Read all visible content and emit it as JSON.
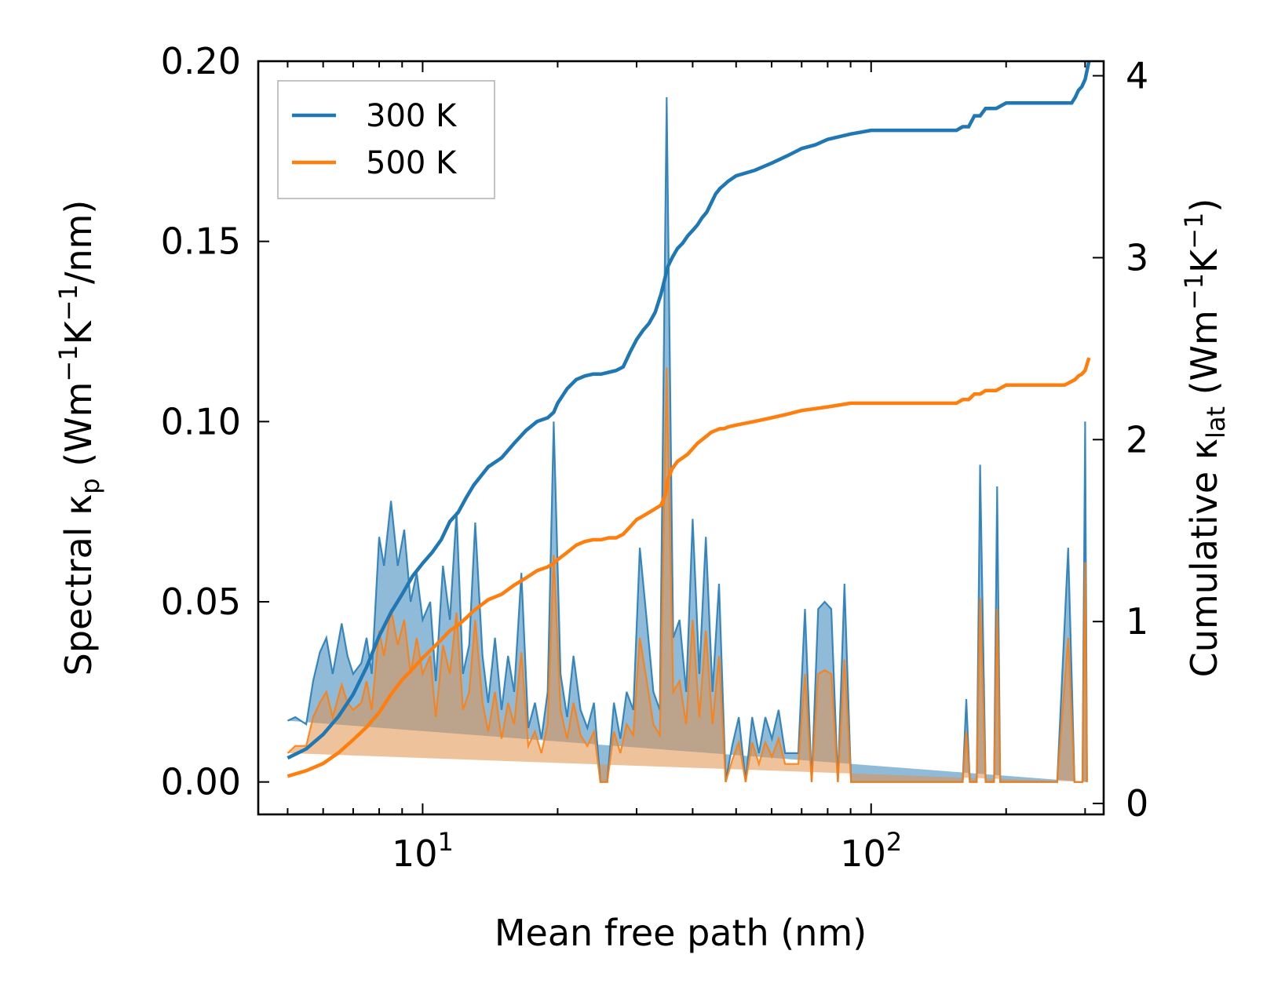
{
  "chart_data": {
    "type": "line",
    "xscale": "log",
    "xlabel": "Mean free path (nm)",
    "ylabel_left": "Spectral κp (Wm⁻¹K⁻¹/nm)",
    "ylabel_left_parts": {
      "pre": "Spectral κ",
      "sub": "p",
      "mid1": " (Wm",
      "sup1": "−1",
      "mid2": "K",
      "sup2": "−1",
      "post": "/nm)"
    },
    "ylabel_right": "Cumulative κlat (Wm⁻¹K⁻¹)",
    "ylabel_right_parts": {
      "pre": "Cumulative κ",
      "sub": "lat",
      "mid1": " (Wm",
      "sup1": "−1",
      "mid2": "K",
      "sup2": "−1",
      "post": ")"
    },
    "xlim": [
      4.3,
      330
    ],
    "ylim_left": [
      -0.009,
      0.2
    ],
    "ylim_right": [
      -0.06,
      4.08
    ],
    "x_tick_labels": [
      {
        "value": 10,
        "base": "10",
        "exp": "1"
      },
      {
        "value": 100,
        "base": "10",
        "exp": "2"
      }
    ],
    "y_left_ticks": [
      {
        "value": 0.0,
        "label": "0.00"
      },
      {
        "value": 0.05,
        "label": "0.05"
      },
      {
        "value": 0.1,
        "label": "0.10"
      },
      {
        "value": 0.15,
        "label": "0.15"
      },
      {
        "value": 0.2,
        "label": "0.20"
      }
    ],
    "y_right_ticks": [
      {
        "value": 0,
        "label": "0"
      },
      {
        "value": 1,
        "label": "1"
      },
      {
        "value": 2,
        "label": "2"
      },
      {
        "value": 3,
        "label": "3"
      },
      {
        "value": 4,
        "label": "4"
      }
    ],
    "legend": {
      "position": "upper-left",
      "entries": [
        "300 K",
        "500 K"
      ]
    },
    "colors": {
      "300K": "#1f77b4",
      "500K": "#ff7f0e",
      "fill300": "#1f77b4",
      "fill500": "#e0924a"
    },
    "spectral": {
      "x": [
        5.0,
        5.2,
        5.5,
        5.7,
        5.9,
        6.1,
        6.3,
        6.6,
        6.8,
        7.0,
        7.3,
        7.5,
        7.7,
        8.0,
        8.2,
        8.5,
        8.8,
        9.1,
        9.4,
        9.7,
        10.0,
        10.4,
        10.7,
        11.1,
        11.5,
        11.9,
        12.3,
        12.7,
        13.1,
        13.6,
        14.0,
        14.5,
        15.0,
        15.5,
        16.0,
        16.6,
        17.2,
        17.8,
        18.4,
        19.0,
        19.6,
        20.3,
        21.0,
        21.7,
        22.5,
        23.3,
        24.1,
        24.9,
        25.8,
        26.7,
        27.6,
        28.5,
        29.5,
        30.5,
        31.6,
        32.7,
        33.8,
        35.0,
        36.2,
        37.4,
        38.7,
        40.0,
        41.4,
        42.8,
        44.3,
        45.8,
        47.4,
        49.0,
        50.7,
        52.5,
        54.3,
        56.2,
        58.1,
        60.1,
        62.2,
        64.3,
        66.5,
        68.8,
        71.2,
        73.7,
        76.2,
        78.8,
        81.5,
        84.3,
        87.2,
        90.2,
        93.3,
        96.5,
        100,
        110,
        120,
        130,
        140,
        150,
        156,
        160,
        163,
        166,
        169,
        172,
        175,
        180,
        185,
        188,
        191,
        194,
        200,
        220,
        240,
        260,
        275,
        280,
        284,
        288,
        292,
        296,
        300,
        303,
        306
      ],
      "k300": [
        0.017,
        0.018,
        0.016,
        0.028,
        0.036,
        0.04,
        0.03,
        0.044,
        0.035,
        0.03,
        0.033,
        0.04,
        0.03,
        0.068,
        0.06,
        0.078,
        0.06,
        0.07,
        0.05,
        0.058,
        0.045,
        0.05,
        0.028,
        0.06,
        0.045,
        0.075,
        0.03,
        0.038,
        0.072,
        0.035,
        0.022,
        0.04,
        0.02,
        0.035,
        0.025,
        0.058,
        0.015,
        0.022,
        0.012,
        0.025,
        0.1,
        0.03,
        0.018,
        0.035,
        0.02,
        0.015,
        0.022,
        0.0,
        0.0,
        0.022,
        0.012,
        0.025,
        0.02,
        0.065,
        0.045,
        0.025,
        0.02,
        0.19,
        0.04,
        0.045,
        0.025,
        0.073,
        0.03,
        0.068,
        0.025,
        0.055,
        0.0,
        0.01,
        0.018,
        0.0,
        0.018,
        0.008,
        0.018,
        0.012,
        0.02,
        0.008,
        0.008,
        0.008,
        0.048,
        0.0,
        0.048,
        0.05,
        0.048,
        0.0,
        0.055,
        0.0,
        0.0,
        0.0,
        0.0,
        0.0,
        0.0,
        0.0,
        0.0,
        0.0,
        0.0,
        0.0,
        0.023,
        0.0,
        0.0,
        0.0,
        0.088,
        0.0,
        0.0,
        0.0,
        0.082,
        0.0,
        0.0,
        0.0,
        0.0,
        0.0,
        0.065,
        0.03,
        0.0,
        0.0,
        0.0,
        0.0,
        0.1,
        0.0
      ],
      "k500": [
        0.008,
        0.01,
        0.01,
        0.018,
        0.022,
        0.025,
        0.018,
        0.027,
        0.022,
        0.02,
        0.022,
        0.028,
        0.02,
        0.042,
        0.035,
        0.048,
        0.038,
        0.045,
        0.03,
        0.04,
        0.03,
        0.035,
        0.018,
        0.038,
        0.03,
        0.047,
        0.02,
        0.025,
        0.045,
        0.022,
        0.014,
        0.025,
        0.012,
        0.022,
        0.016,
        0.036,
        0.01,
        0.014,
        0.008,
        0.016,
        0.063,
        0.02,
        0.012,
        0.022,
        0.013,
        0.01,
        0.014,
        0.0,
        0.0,
        0.014,
        0.008,
        0.016,
        0.013,
        0.04,
        0.028,
        0.016,
        0.013,
        0.115,
        0.025,
        0.028,
        0.016,
        0.045,
        0.018,
        0.042,
        0.016,
        0.035,
        0.0,
        0.006,
        0.011,
        0.0,
        0.011,
        0.005,
        0.011,
        0.007,
        0.012,
        0.005,
        0.005,
        0.005,
        0.03,
        0.0,
        0.03,
        0.031,
        0.03,
        0.0,
        0.034,
        0.0,
        0.0,
        0.0,
        0.0,
        0.0,
        0.0,
        0.0,
        0.0,
        0.0,
        0.0,
        0.0,
        0.014,
        0.0,
        0.0,
        0.0,
        0.051,
        0.0,
        0.0,
        0.0,
        0.048,
        0.0,
        0.0,
        0.0,
        0.0,
        0.0,
        0.04,
        0.018,
        0.0,
        0.0,
        0.0,
        0.0,
        0.061,
        0.0
      ]
    },
    "cumulative": {
      "x300": [
        5.0,
        5.5,
        6.0,
        6.5,
        7.0,
        7.5,
        8.0,
        8.5,
        9.0,
        9.5,
        10.0,
        10.5,
        11.0,
        11.5,
        12.0,
        12.5,
        13.0,
        14.0,
        15.0,
        16.0,
        17.0,
        18.0,
        19.0,
        19.6,
        20.0,
        21.0,
        22.0,
        23.0,
        24.0,
        25.0,
        26.0,
        27.0,
        28.0,
        29.0,
        30.0,
        31.0,
        32.0,
        33.0,
        34.0,
        34.8,
        35.2,
        36.0,
        37.0,
        38.0,
        39.0,
        40.0,
        41.0,
        42.0,
        43.0,
        44.0,
        45.0,
        46.0,
        47.0,
        48.0,
        50.0,
        55.0,
        60.0,
        65.0,
        70.0,
        75.0,
        80.0,
        90.0,
        100.0,
        120.0,
        140.0,
        155.0,
        160.0,
        165.0,
        170.0,
        175.0,
        180.0,
        190.0,
        200.0,
        220.0,
        250.0,
        270.0,
        280.0,
        285.0,
        290.0,
        295.0,
        300.0,
        306.0
      ],
      "c300": [
        0.25,
        0.3,
        0.38,
        0.48,
        0.6,
        0.75,
        0.92,
        1.05,
        1.15,
        1.25,
        1.32,
        1.38,
        1.45,
        1.55,
        1.6,
        1.68,
        1.75,
        1.85,
        1.9,
        1.98,
        2.05,
        2.1,
        2.12,
        2.15,
        2.2,
        2.28,
        2.33,
        2.35,
        2.36,
        2.36,
        2.37,
        2.38,
        2.4,
        2.48,
        2.55,
        2.6,
        2.64,
        2.7,
        2.8,
        2.9,
        2.95,
        3.0,
        3.05,
        3.08,
        3.12,
        3.15,
        3.18,
        3.22,
        3.25,
        3.3,
        3.35,
        3.38,
        3.4,
        3.42,
        3.45,
        3.48,
        3.52,
        3.56,
        3.6,
        3.62,
        3.65,
        3.68,
        3.7,
        3.7,
        3.7,
        3.7,
        3.72,
        3.72,
        3.78,
        3.78,
        3.82,
        3.82,
        3.85,
        3.85,
        3.85,
        3.85,
        3.85,
        3.88,
        3.92,
        3.94,
        3.98,
        4.08
      ],
      "x500": [
        5.0,
        5.5,
        6.0,
        6.5,
        7.0,
        7.5,
        8.0,
        8.5,
        9.0,
        9.5,
        10.0,
        10.5,
        11.0,
        11.5,
        12.0,
        12.5,
        13.0,
        14.0,
        15.0,
        16.0,
        17.0,
        18.0,
        19.0,
        19.6,
        20.0,
        21.0,
        22.0,
        23.0,
        24.0,
        25.0,
        26.0,
        27.0,
        28.0,
        29.0,
        30.0,
        31.0,
        32.0,
        33.0,
        34.0,
        34.8,
        35.2,
        36.0,
        37.0,
        38.0,
        39.0,
        40.0,
        41.0,
        42.0,
        43.0,
        44.0,
        45.0,
        46.0,
        47.0,
        48.0,
        50.0,
        55.0,
        60.0,
        65.0,
        70.0,
        75.0,
        80.0,
        90.0,
        100.0,
        120.0,
        140.0,
        155.0,
        160.0,
        165.0,
        170.0,
        175.0,
        180.0,
        190.0,
        200.0,
        220.0,
        250.0,
        270.0,
        280.0,
        285.0,
        290.0,
        295.0,
        300.0,
        306.0
      ],
      "c500": [
        0.15,
        0.18,
        0.22,
        0.28,
        0.35,
        0.42,
        0.5,
        0.6,
        0.68,
        0.74,
        0.8,
        0.85,
        0.9,
        0.95,
        0.98,
        1.02,
        1.06,
        1.12,
        1.15,
        1.2,
        1.24,
        1.28,
        1.3,
        1.32,
        1.34,
        1.38,
        1.42,
        1.44,
        1.45,
        1.45,
        1.46,
        1.46,
        1.48,
        1.52,
        1.56,
        1.58,
        1.6,
        1.62,
        1.64,
        1.7,
        1.78,
        1.84,
        1.88,
        1.9,
        1.92,
        1.95,
        1.98,
        2.0,
        2.02,
        2.04,
        2.05,
        2.06,
        2.06,
        2.07,
        2.08,
        2.1,
        2.12,
        2.14,
        2.16,
        2.17,
        2.18,
        2.2,
        2.2,
        2.2,
        2.2,
        2.2,
        2.22,
        2.22,
        2.25,
        2.25,
        2.27,
        2.27,
        2.3,
        2.3,
        2.3,
        2.3,
        2.32,
        2.33,
        2.35,
        2.36,
        2.38,
        2.45
      ]
    }
  }
}
